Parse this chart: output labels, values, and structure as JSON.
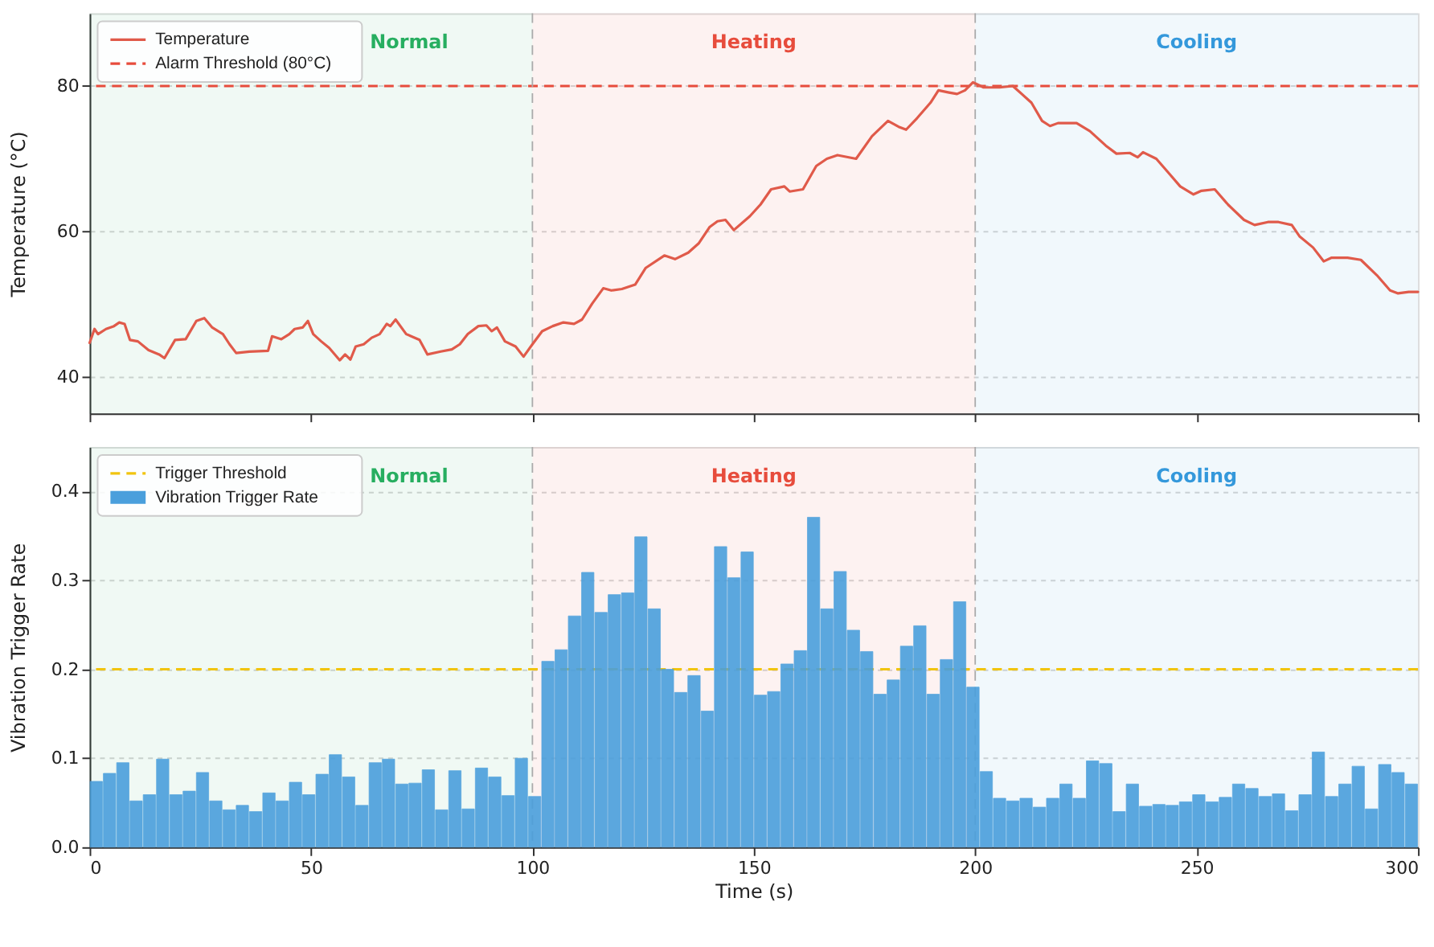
{
  "chart_data": [
    {
      "type": "line",
      "ylabel": "Temperature (°C)",
      "xlim": [
        0,
        300
      ],
      "xticks": [
        0,
        50,
        100,
        150,
        200,
        250,
        300
      ],
      "ylim": [
        35,
        90
      ],
      "yticks": [
        40,
        60,
        80
      ],
      "grid": "y",
      "legend": "top left",
      "tick_labels": "y",
      "series": [
        {
          "name": "Temperature",
          "color": "#e05a4a",
          "x": [
            0,
            1.1,
            1.9,
            3.7,
            5.5,
            6.7,
            7.9,
            9.1,
            10.9,
            13.3,
            15.7,
            16.9,
            19.3,
            21.7,
            24.1,
            25.9,
            27.7,
            30.1,
            31.6,
            33.1,
            36.1,
            40.3,
            41.2,
            43.3,
            45.1,
            46.3,
            48.1,
            49.3,
            50.5,
            52.3,
            54.1,
            56.5,
            57.7,
            58.9,
            60.1,
            61.9,
            63.7,
            65.5,
            67.1,
            67.9,
            69.1,
            71.5,
            74.5,
            76.3,
            79.3,
            81.8,
            83.6,
            85.4,
            87.8,
            89.6,
            90.8,
            92.0,
            93.8,
            96.2,
            98.0,
            100,
            102.2,
            104.6,
            107,
            109.4,
            111.2,
            113.5,
            116,
            117.8,
            120.2,
            123.2,
            125.6,
            129.8,
            132.2,
            135.2,
            137.6,
            140,
            141.8,
            143.6,
            145.5,
            149.1,
            151.5,
            153.9,
            156.9,
            158.1,
            161.1,
            164.1,
            166.5,
            168.9,
            173.1,
            176.7,
            180.3,
            182.7,
            184.4,
            186.9,
            189.9,
            191.7,
            194.1,
            195.9,
            197.7,
            199.5,
            201.9,
            205.5,
            208.5,
            212.7,
            215.1,
            216.9,
            218.7,
            222.9,
            225.9,
            229.5,
            231.9,
            234.9,
            236.7,
            237.9,
            240.9,
            243.9,
            246.3,
            249.3,
            251.1,
            254.1,
            257.1,
            260.7,
            263.1,
            266.1,
            268.5,
            271.5,
            273.3,
            276.3,
            278.7,
            280.5,
            284.1,
            287.1,
            290.7,
            293.7,
            295.5,
            297.9,
            300
          ],
          "values": [
            44.7,
            46.6,
            45.9,
            46.6,
            47.0,
            47.5,
            47.3,
            45.1,
            44.9,
            43.7,
            43.1,
            42.6,
            45.1,
            45.2,
            47.7,
            48.1,
            46.8,
            45.9,
            44.5,
            43.3,
            43.5,
            43.6,
            45.6,
            45.2,
            45.9,
            46.6,
            46.8,
            47.7,
            45.9,
            44.9,
            44.0,
            42.3,
            43.1,
            42.4,
            44.2,
            44.5,
            45.4,
            45.9,
            47.3,
            47.0,
            47.9,
            45.9,
            45.1,
            43.1,
            43.5,
            43.8,
            44.5,
            45.9,
            47.0,
            47.1,
            46.3,
            46.8,
            44.9,
            44.2,
            42.8,
            44.5,
            46.3,
            47.0,
            47.5,
            47.3,
            47.9,
            50.1,
            52.2,
            51.9,
            52.1,
            52.7,
            55.0,
            56.7,
            56.2,
            57.1,
            58.4,
            60.6,
            61.4,
            61.6,
            60.2,
            62.1,
            63.7,
            65.8,
            66.2,
            65.5,
            65.8,
            69.0,
            70.0,
            70.5,
            70.0,
            73.1,
            75.2,
            74.4,
            74.0,
            75.6,
            77.7,
            79.4,
            79.1,
            78.9,
            79.4,
            80.5,
            79.8,
            79.8,
            80.0,
            77.7,
            75.2,
            74.5,
            74.9,
            74.9,
            73.8,
            71.8,
            70.7,
            70.8,
            70.2,
            70.9,
            70.0,
            67.9,
            66.2,
            65.1,
            65.6,
            65.8,
            63.7,
            61.6,
            60.9,
            61.3,
            61.3,
            60.9,
            59.3,
            57.8,
            55.9,
            56.4,
            56.4,
            56.1,
            54.0,
            51.9,
            51.5,
            51.7,
            51.7
          ]
        }
      ],
      "ref_lines": [
        {
          "axis": "y",
          "value": 80,
          "label": "Alarm Threshold (80°C)",
          "color": "#e74c3c",
          "line_style": "dashed"
        },
        {
          "axis": "x",
          "value": 100,
          "color": "#aaaaaa",
          "line_style": "dashed"
        },
        {
          "axis": "x",
          "value": 200,
          "color": "#aaaaaa",
          "line_style": "dashed"
        }
      ],
      "bands": [
        {
          "axis": "x",
          "from": 0,
          "to": 100,
          "label": "Normal",
          "color": "#27ae60"
        },
        {
          "axis": "x",
          "from": 100,
          "to": 200,
          "label": "Heating",
          "color": "#e74c3c"
        },
        {
          "axis": "x",
          "from": 200,
          "to": 300,
          "label": "Cooling",
          "color": "#3498db"
        }
      ]
    },
    {
      "type": "bar",
      "xlabel": "Time (s)",
      "ylabel": "Vibration Trigger Rate",
      "xlim": [
        0,
        300
      ],
      "xticks": [
        0,
        50,
        100,
        150,
        200,
        250,
        300
      ],
      "ylim": [
        0,
        0.45
      ],
      "yticks": [
        {
          "value": 0,
          "label": "0.0"
        },
        0.1,
        0.2,
        0.3,
        0.4
      ],
      "grid": "y",
      "legend": "top left",
      "series": [
        {
          "name": "Vibration Trigger Rate",
          "color": "#4a9fdc",
          "x": [
            1.5,
            4.5,
            7.5,
            10.5,
            13.5,
            16.5,
            19.5,
            22.5,
            25.5,
            28.5,
            31.5,
            34.5,
            37.5,
            40.5,
            43.5,
            46.5,
            49.5,
            52.5,
            55.5,
            58.5,
            61.5,
            64.5,
            67.5,
            70.5,
            73.5,
            76.5,
            79.5,
            82.5,
            85.5,
            88.5,
            91.5,
            94.5,
            97.5,
            100.5,
            103.5,
            106.5,
            109.5,
            112.5,
            115.5,
            118.5,
            121.5,
            124.5,
            127.5,
            130.5,
            133.5,
            136.5,
            139.5,
            142.5,
            145.5,
            148.5,
            151.5,
            154.5,
            157.5,
            160.5,
            163.5,
            166.5,
            169.5,
            172.5,
            175.5,
            178.5,
            181.5,
            184.5,
            187.5,
            190.5,
            193.5,
            196.5,
            199.5,
            202.5,
            205.5,
            208.5,
            211.5,
            214.5,
            217.5,
            220.5,
            223.5,
            226.5,
            229.5,
            232.5,
            235.5,
            238.5,
            241.5,
            244.5,
            247.5,
            250.5,
            253.5,
            256.5,
            259.5,
            262.5,
            265.5,
            268.5,
            271.5,
            274.5,
            277.5,
            280.5,
            283.5,
            286.5,
            289.5,
            292.5,
            295.5,
            298.5
          ],
          "values": [
            0.074,
            0.083,
            0.095,
            0.052,
            0.059,
            0.099,
            0.059,
            0.063,
            0.084,
            0.052,
            0.042,
            0.047,
            0.04,
            0.061,
            0.052,
            0.073,
            0.059,
            0.082,
            0.104,
            0.079,
            0.047,
            0.095,
            0.099,
            0.071,
            0.072,
            0.087,
            0.042,
            0.086,
            0.043,
            0.089,
            0.079,
            0.058,
            0.1,
            0.057,
            0.209,
            0.222,
            0.26,
            0.309,
            0.264,
            0.284,
            0.286,
            0.349,
            0.268,
            0.2,
            0.174,
            0.193,
            0.153,
            0.338,
            0.303,
            0.332,
            0.171,
            0.175,
            0.206,
            0.221,
            0.371,
            0.268,
            0.31,
            0.244,
            0.22,
            0.172,
            0.188,
            0.226,
            0.249,
            0.172,
            0.211,
            0.276,
            0.18,
            0.085,
            0.055,
            0.052,
            0.055,
            0.045,
            0.055,
            0.071,
            0.055,
            0.097,
            0.094,
            0.04,
            0.071,
            0.046,
            0.048,
            0.047,
            0.051,
            0.059,
            0.051,
            0.056,
            0.071,
            0.066,
            0.057,
            0.06,
            0.041,
            0.059,
            0.107,
            0.057,
            0.071,
            0.091,
            0.043,
            0.093,
            0.084,
            0.071
          ]
        }
      ],
      "ref_lines": [
        {
          "axis": "y",
          "value": 0.2,
          "label": "Trigger Threshold",
          "color": "#f1c40f",
          "line_style": "dashed"
        },
        {
          "axis": "x",
          "value": 100,
          "color": "#aaaaaa",
          "line_style": "dashed"
        },
        {
          "axis": "x",
          "value": 200,
          "color": "#aaaaaa",
          "line_style": "dashed"
        }
      ],
      "bands": [
        {
          "axis": "x",
          "from": 0,
          "to": 100,
          "label": "Normal",
          "color": "#27ae60"
        },
        {
          "axis": "x",
          "from": 100,
          "to": 200,
          "label": "Heating",
          "color": "#e74c3c"
        },
        {
          "axis": "x",
          "from": 200,
          "to": 300,
          "label": "Cooling",
          "color": "#3498db"
        }
      ]
    }
  ]
}
